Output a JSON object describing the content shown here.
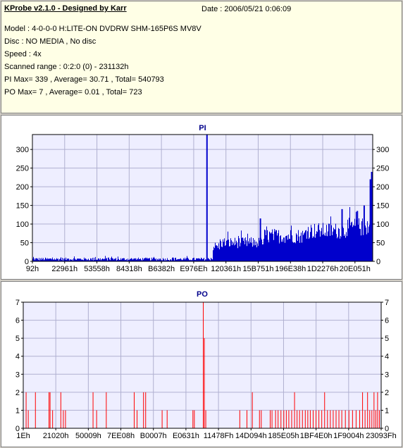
{
  "info": {
    "title": "KProbe v2.1.0 - Designed by Karr",
    "date": "Date : 2006/05/21 0:06:09",
    "lines": [
      "Model : 4-0-0-0 H:LITE-ON DVDRW SHM-165P6S MV8V",
      "Disc : NO MEDIA , No disc",
      "Speed : 4x",
      "Scanned range : 0:2:0 (0) - 231132h",
      "PI Max= 339 , Average= 30.71 , Total= 540793",
      "PO Max= 7 , Average= 0.01 , Total= 723"
    ]
  },
  "colors": {
    "pi_series": "#0000cc",
    "po_series": "#ff0000",
    "plot_bg": "#eeeeff",
    "grid": "#b0b0d0"
  },
  "chart_data": [
    {
      "type": "bar",
      "title": "PI",
      "ylim": [
        0,
        340
      ],
      "yticks": [
        0,
        50,
        100,
        150,
        200,
        250,
        300
      ],
      "grid": true,
      "x_tick_labels": [
        "92h",
        "22961h",
        "53558h",
        "84318h",
        "B6382h",
        "E976Eh",
        "120361h",
        "15B751h",
        "196E38h",
        "1D2276h",
        "20E051h"
      ],
      "x_range_hex": [
        "92h",
        "231132h"
      ],
      "profile": [
        {
          "from": 0.0,
          "to": 0.53,
          "base": 6,
          "noise": 4
        },
        {
          "from": 0.53,
          "to": 0.55,
          "base": 40,
          "noise": 12
        },
        {
          "from": 0.55,
          "to": 0.68,
          "base": 50,
          "noise": 15
        },
        {
          "from": 0.68,
          "to": 0.8,
          "base": 68,
          "noise": 20
        },
        {
          "from": 0.8,
          "to": 0.92,
          "base": 82,
          "noise": 22
        },
        {
          "from": 0.92,
          "to": 1.0,
          "base": 92,
          "noise": 25
        }
      ],
      "spikes": [
        {
          "x": 0.513,
          "value": 339
        },
        {
          "x": 0.993,
          "value": 220
        },
        {
          "x": 0.997,
          "value": 240
        },
        {
          "x": 0.975,
          "value": 150
        },
        {
          "x": 0.955,
          "value": 135
        },
        {
          "x": 0.91,
          "value": 140
        },
        {
          "x": 0.67,
          "value": 115
        }
      ]
    },
    {
      "type": "bar",
      "title": "PO",
      "ylim": [
        0,
        7
      ],
      "yticks": [
        0,
        1,
        2,
        3,
        4,
        5,
        6,
        7
      ],
      "grid": true,
      "x_tick_labels": [
        "1Eh",
        "21020h",
        "50009h",
        "7EE08h",
        "B0007h",
        "E0631h",
        "11478Fh",
        "14D094h",
        "185E05h",
        "1BF4E0h",
        "1F9004h",
        "23093Fh"
      ],
      "x_range_hex": [
        "1Eh",
        "23093Fh"
      ],
      "bars": [
        {
          "x": 0.008,
          "value": 2
        },
        {
          "x": 0.014,
          "value": 1
        },
        {
          "x": 0.034,
          "value": 2
        },
        {
          "x": 0.072,
          "value": 2
        },
        {
          "x": 0.075,
          "value": 2
        },
        {
          "x": 0.082,
          "value": 1
        },
        {
          "x": 0.105,
          "value": 2
        },
        {
          "x": 0.112,
          "value": 1
        },
        {
          "x": 0.118,
          "value": 1
        },
        {
          "x": 0.195,
          "value": 2
        },
        {
          "x": 0.205,
          "value": 1
        },
        {
          "x": 0.232,
          "value": 2
        },
        {
          "x": 0.31,
          "value": 2
        },
        {
          "x": 0.318,
          "value": 1
        },
        {
          "x": 0.336,
          "value": 2
        },
        {
          "x": 0.342,
          "value": 2
        },
        {
          "x": 0.388,
          "value": 1
        },
        {
          "x": 0.402,
          "value": 1
        },
        {
          "x": 0.474,
          "value": 1
        },
        {
          "x": 0.478,
          "value": 1
        },
        {
          "x": 0.503,
          "value": 7
        },
        {
          "x": 0.506,
          "value": 5
        },
        {
          "x": 0.51,
          "value": 1
        },
        {
          "x": 0.605,
          "value": 1
        },
        {
          "x": 0.625,
          "value": 1
        },
        {
          "x": 0.64,
          "value": 2
        },
        {
          "x": 0.66,
          "value": 1
        },
        {
          "x": 0.665,
          "value": 1
        },
        {
          "x": 0.69,
          "value": 1
        },
        {
          "x": 0.695,
          "value": 1
        },
        {
          "x": 0.705,
          "value": 1
        },
        {
          "x": 0.712,
          "value": 1
        },
        {
          "x": 0.72,
          "value": 1
        },
        {
          "x": 0.728,
          "value": 1
        },
        {
          "x": 0.735,
          "value": 1
        },
        {
          "x": 0.742,
          "value": 1
        },
        {
          "x": 0.75,
          "value": 1
        },
        {
          "x": 0.758,
          "value": 2
        },
        {
          "x": 0.765,
          "value": 1
        },
        {
          "x": 0.772,
          "value": 1
        },
        {
          "x": 0.78,
          "value": 1
        },
        {
          "x": 0.788,
          "value": 1
        },
        {
          "x": 0.795,
          "value": 1
        },
        {
          "x": 0.802,
          "value": 1
        },
        {
          "x": 0.81,
          "value": 1
        },
        {
          "x": 0.818,
          "value": 1
        },
        {
          "x": 0.826,
          "value": 1
        },
        {
          "x": 0.834,
          "value": 1
        },
        {
          "x": 0.842,
          "value": 2
        },
        {
          "x": 0.85,
          "value": 1
        },
        {
          "x": 0.858,
          "value": 1
        },
        {
          "x": 0.866,
          "value": 1
        },
        {
          "x": 0.874,
          "value": 1
        },
        {
          "x": 0.882,
          "value": 1
        },
        {
          "x": 0.89,
          "value": 1
        },
        {
          "x": 0.9,
          "value": 1
        },
        {
          "x": 0.91,
          "value": 1
        },
        {
          "x": 0.92,
          "value": 1
        },
        {
          "x": 0.93,
          "value": 1
        },
        {
          "x": 0.94,
          "value": 1
        },
        {
          "x": 0.948,
          "value": 2
        },
        {
          "x": 0.955,
          "value": 1
        },
        {
          "x": 0.962,
          "value": 2
        },
        {
          "x": 0.968,
          "value": 1
        },
        {
          "x": 0.974,
          "value": 1
        },
        {
          "x": 0.98,
          "value": 2
        },
        {
          "x": 0.985,
          "value": 1
        },
        {
          "x": 0.99,
          "value": 2
        },
        {
          "x": 0.995,
          "value": 1
        }
      ]
    }
  ]
}
